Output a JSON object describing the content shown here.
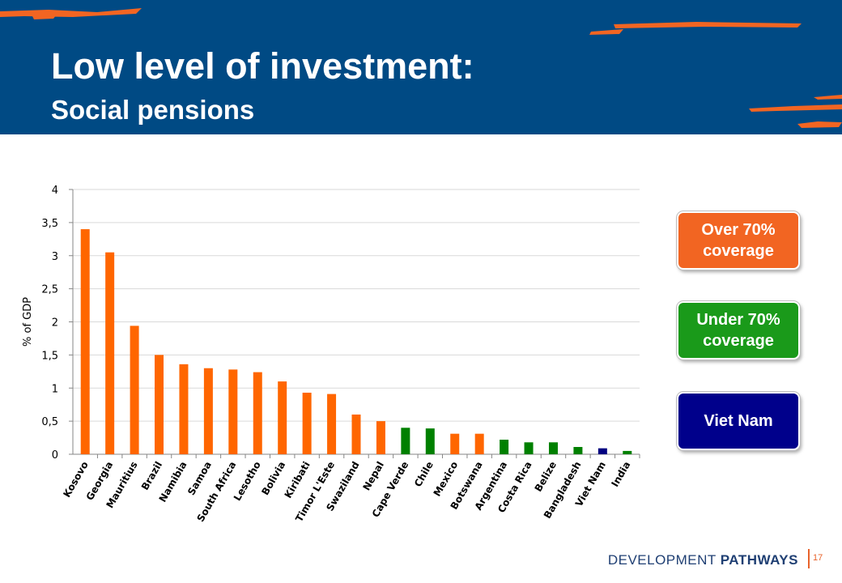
{
  "slide": {
    "title": "Low level of investment:",
    "subtitle": "Social pensions",
    "footer_brand_regular": "DEVELOPMENT",
    "footer_brand_bold": "PATHWAYS",
    "page_number": "17"
  },
  "legend": [
    {
      "label": "Over 70% coverage",
      "line1": "Over 70%",
      "line2": "coverage",
      "color": "#f26522"
    },
    {
      "label": "Under 70% coverage",
      "line1": "Under 70%",
      "line2": "coverage",
      "color": "#1a9a1a"
    },
    {
      "label": "Viet Nam",
      "line1": "Viet Nam",
      "line2": "",
      "color": "#00008b"
    }
  ],
  "colors": {
    "header_bg": "#004a84",
    "brush": "#f26522",
    "over70": "#ff6600",
    "under70": "#008000",
    "vietnam": "#000080"
  },
  "chart_data": {
    "type": "bar",
    "ylabel": "% of GDP",
    "ylim": [
      0,
      4
    ],
    "yticks": [
      0,
      0.5,
      1,
      1.5,
      2,
      2.5,
      3,
      3.5,
      4
    ],
    "ytick_labels": [
      "0",
      "0,5",
      "1",
      "1,5",
      "2",
      "2,5",
      "3",
      "3,5",
      "4"
    ],
    "grid": "horizontal",
    "categories": [
      "Kosovo",
      "Georgia",
      "Mauritius",
      "Brazil",
      "Namibia",
      "Samoa",
      "South Africa",
      "Lesotho",
      "Bolivia",
      "Kiribati",
      "Timor L'Este",
      "Swaziland",
      "Nepal",
      "Cape Verde",
      "Chile",
      "Mexico",
      "Botswana",
      "Argentina",
      "Costa Rica",
      "Belize",
      "Bangladesh",
      "Viet Nam",
      "India"
    ],
    "values": [
      3.4,
      3.05,
      1.94,
      1.5,
      1.36,
      1.3,
      1.28,
      1.24,
      1.1,
      0.93,
      0.91,
      0.6,
      0.5,
      0.4,
      0.39,
      0.31,
      0.31,
      0.22,
      0.18,
      0.18,
      0.11,
      0.09,
      0.05
    ],
    "groups": [
      "over",
      "over",
      "over",
      "over",
      "over",
      "over",
      "over",
      "over",
      "over",
      "over",
      "over",
      "over",
      "over",
      "under",
      "under",
      "over",
      "over",
      "under",
      "under",
      "under",
      "under",
      "vietnam",
      "under"
    ]
  }
}
